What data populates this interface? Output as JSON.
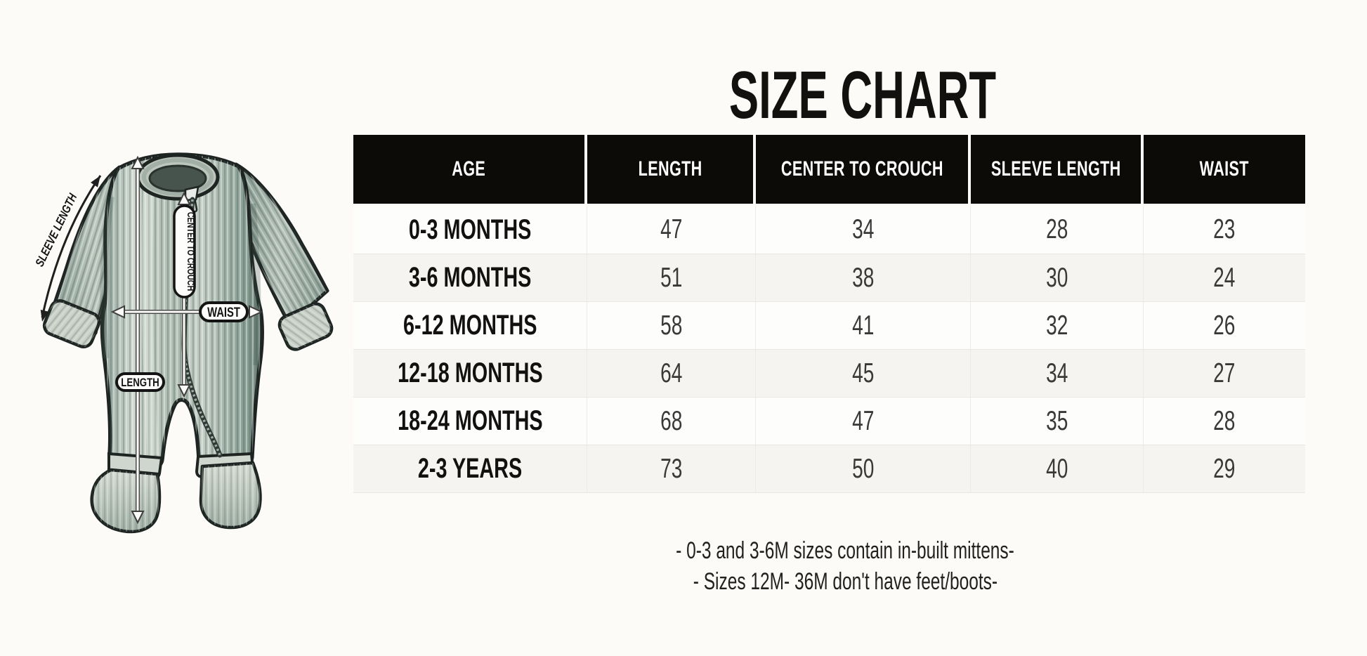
{
  "title": "SIZE CHART",
  "chart_data": {
    "type": "table",
    "title": "SIZE CHART",
    "columns": [
      "AGE",
      "LENGTH",
      "CENTER TO CROUCH",
      "SLEEVE LENGTH",
      "WAIST"
    ],
    "rows": [
      [
        "0-3 MONTHS",
        "47",
        "34",
        "28",
        "23"
      ],
      [
        "3-6 MONTHS",
        "51",
        "38",
        "30",
        "24"
      ],
      [
        "6-12 MONTHS",
        "58",
        "41",
        "32",
        "26"
      ],
      [
        "12-18 MONTHS",
        "64",
        "45",
        "34",
        "27"
      ],
      [
        "18-24 MONTHS",
        "68",
        "47",
        "35",
        "28"
      ],
      [
        "2-3 YEARS",
        "73",
        "50",
        "40",
        "29"
      ]
    ],
    "notes": [
      "- 0-3 and 3-6M sizes contain in-built mittens-",
      "- Sizes 12M- 36M don't have feet/boots-"
    ],
    "legend_position": "none",
    "grid": "row-separators"
  },
  "diagram": {
    "labels": {
      "sleeve_length": "SLEEVE LENGTH",
      "center_to_crouch": "CENTER TO CROUCH",
      "waist": "WAIST",
      "length": "LENGTH"
    }
  },
  "colors": {
    "page_bg": "#fcfbf8",
    "header_bg": "#0d0b08",
    "header_text": "#ffffff",
    "row_bg": "#fdfdfc",
    "row_alt_bg": "#f5f4f1",
    "row_border": "#e9e7e3",
    "text": "#131110",
    "value_text": "#3a3937",
    "garment_sage": "#aebcb2",
    "garment_outline": "#1d2422"
  }
}
